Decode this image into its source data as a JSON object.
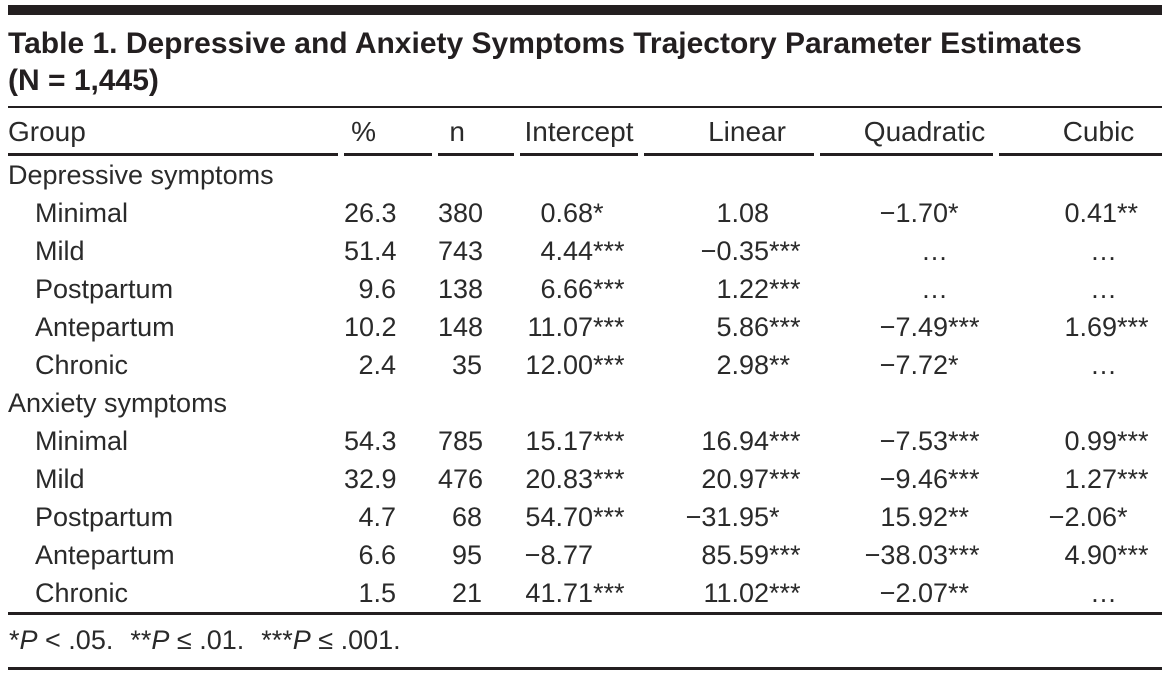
{
  "title": "Table 1. Depressive and Anxiety Symptoms Trajectory Parameter Estimates (N = 1,445)",
  "columns": [
    "Group",
    "%",
    "n",
    "Intercept",
    "Linear",
    "Quadratic",
    "Cubic"
  ],
  "table": {
    "sections": [
      {
        "label": "Depressive symptoms",
        "rows": [
          {
            "group": "Minimal",
            "pct": "26.3",
            "n": "380",
            "intercept": [
              "0.68",
              "*"
            ],
            "linear": [
              "1.08",
              ""
            ],
            "quadratic": [
              "−1.70",
              "*"
            ],
            "cubic": [
              "0.41",
              "**"
            ]
          },
          {
            "group": "Mild",
            "pct": "51.4",
            "n": "743",
            "intercept": [
              "4.44",
              "***"
            ],
            "linear": [
              "−0.35",
              "***"
            ],
            "quadratic": [
              "…",
              ""
            ],
            "cubic": [
              "…",
              ""
            ]
          },
          {
            "group": "Postpartum",
            "pct": "9.6",
            "n": "138",
            "intercept": [
              "6.66",
              "***"
            ],
            "linear": [
              "1.22",
              "***"
            ],
            "quadratic": [
              "…",
              ""
            ],
            "cubic": [
              "…",
              ""
            ]
          },
          {
            "group": "Antepartum",
            "pct": "10.2",
            "n": "148",
            "intercept": [
              "11.07",
              "***"
            ],
            "linear": [
              "5.86",
              "***"
            ],
            "quadratic": [
              "−7.49",
              "***"
            ],
            "cubic": [
              "1.69",
              "***"
            ]
          },
          {
            "group": "Chronic",
            "pct": "2.4",
            "n": "35",
            "intercept": [
              "12.00",
              "***"
            ],
            "linear": [
              "2.98",
              "**"
            ],
            "quadratic": [
              "−7.72",
              "*"
            ],
            "cubic": [
              "…",
              ""
            ]
          }
        ]
      },
      {
        "label": "Anxiety symptoms",
        "rows": [
          {
            "group": "Minimal",
            "pct": "54.3",
            "n": "785",
            "intercept": [
              "15.17",
              "***"
            ],
            "linear": [
              "16.94",
              "***"
            ],
            "quadratic": [
              "−7.53",
              "***"
            ],
            "cubic": [
              "0.99",
              "***"
            ]
          },
          {
            "group": "Mild",
            "pct": "32.9",
            "n": "476",
            "intercept": [
              "20.83",
              "***"
            ],
            "linear": [
              "20.97",
              "***"
            ],
            "quadratic": [
              "−9.46",
              "***"
            ],
            "cubic": [
              "1.27",
              "***"
            ]
          },
          {
            "group": "Postpartum",
            "pct": "4.7",
            "n": "68",
            "intercept": [
              "54.70",
              "***"
            ],
            "linear": [
              "−31.95",
              "*"
            ],
            "quadratic": [
              "15.92",
              "**"
            ],
            "cubic": [
              "−2.06",
              "*"
            ]
          },
          {
            "group": "Antepartum",
            "pct": "6.6",
            "n": "95",
            "intercept": [
              "−8.77",
              ""
            ],
            "linear": [
              "85.59",
              "***"
            ],
            "quadratic": [
              "−38.03",
              "***"
            ],
            "cubic": [
              "4.90",
              "***"
            ]
          },
          {
            "group": "Chronic",
            "pct": "1.5",
            "n": "21",
            "intercept": [
              "41.71",
              "***"
            ],
            "linear": [
              "11.02",
              "***"
            ],
            "quadratic": [
              "−2.07",
              "**"
            ],
            "cubic": [
              "…",
              ""
            ]
          }
        ]
      }
    ]
  },
  "footnote": {
    "p_symbol": "P",
    "items": [
      {
        "stars": "*",
        "rest": " < .05."
      },
      {
        "stars": "**",
        "rest": " ≤ .01."
      },
      {
        "stars": "***",
        "rest": " ≤ .001."
      }
    ]
  },
  "colors": {
    "text": "#2a2a2a",
    "title": "#231f20",
    "rule": "#231f20",
    "background": "#ffffff"
  }
}
